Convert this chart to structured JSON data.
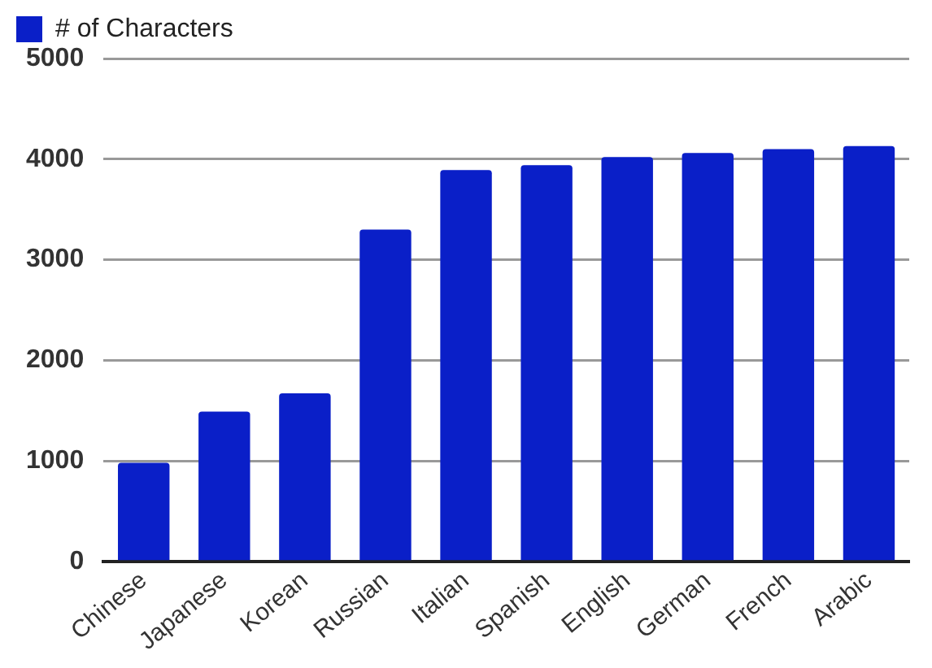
{
  "chart_data": {
    "type": "bar",
    "categories": [
      "Chinese",
      "Japanese",
      "Korean",
      "Russian",
      "Italian",
      "Spanish",
      "English",
      "German",
      "French",
      "Arabic"
    ],
    "series": [
      {
        "name": "# of Characters",
        "color": "#0a1fc8",
        "values": [
          980,
          1490,
          1670,
          3300,
          3890,
          3940,
          4020,
          4060,
          4100,
          4130
        ]
      }
    ],
    "ylim": [
      0,
      5000
    ],
    "yticks": [
      0,
      1000,
      2000,
      3000,
      4000,
      5000
    ],
    "grid": "y",
    "legend": "top left"
  }
}
